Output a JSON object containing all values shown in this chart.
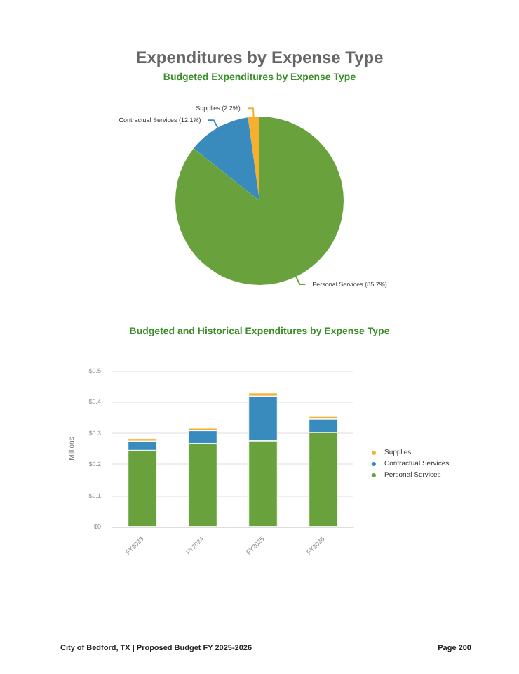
{
  "chart_data": [
    {
      "type": "pie",
      "title": "Expenditures by Expense Type",
      "subtitle": "Budgeted Expenditures by Expense Type",
      "categories": [
        "Supplies",
        "Contractual Services",
        "Personal Services"
      ],
      "values": [
        2.2,
        12.1,
        85.7
      ],
      "colors": [
        "#f4b02e",
        "#3a8bbd",
        "#69a13c"
      ],
      "value_labels": [
        "(2.2%)",
        "(12.1%)",
        "(85.7%)"
      ],
      "legend": false
    },
    {
      "type": "bar",
      "title": "Budgeted and Historical Expenditures by Expense Type",
      "stacked": true,
      "categories": [
        "FY2023",
        "FY2024",
        "FY2025",
        "FY2026"
      ],
      "series": [
        {
          "name": "Personal Services",
          "color": "#69a13c",
          "values": [
            0.244,
            0.266,
            0.275,
            0.302
          ]
        },
        {
          "name": "Contractual Services",
          "color": "#3a8bbd",
          "values": [
            0.03,
            0.042,
            0.143,
            0.043
          ]
        },
        {
          "name": "Supplies",
          "color": "#f4b02e",
          "values": [
            0.009,
            0.008,
            0.011,
            0.009
          ]
        }
      ],
      "ylabel": "Millions",
      "ylim": [
        0,
        0.5
      ],
      "yticks": [
        {
          "value": 0,
          "label": "$0"
        },
        {
          "value": 0.1,
          "label": "$0.1"
        },
        {
          "value": 0.2,
          "label": "$0.2"
        },
        {
          "value": 0.3,
          "label": "$0.3"
        },
        {
          "value": 0.4,
          "label": "$0.4"
        },
        {
          "value": 0.5,
          "label": "$0.5"
        }
      ],
      "grid": "y",
      "legend": "right",
      "annotations": [
        "City of Bedford, TX | Proposed Budget FY 2025-2026",
        "Page 200"
      ]
    }
  ]
}
